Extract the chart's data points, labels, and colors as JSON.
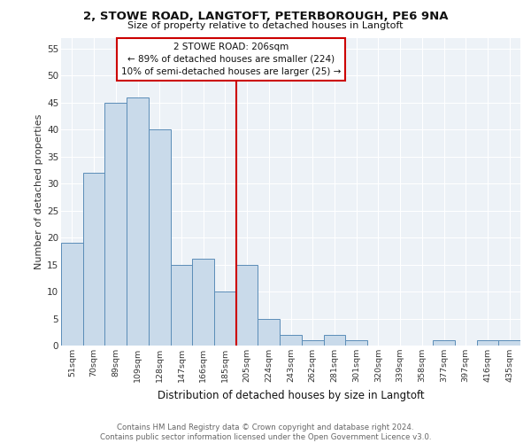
{
  "title1": "2, STOWE ROAD, LANGTOFT, PETERBOROUGH, PE6 9NA",
  "title2": "Size of property relative to detached houses in Langtoft",
  "xlabel": "Distribution of detached houses by size in Langtoft",
  "ylabel": "Number of detached properties",
  "categories": [
    "51sqm",
    "70sqm",
    "89sqm",
    "109sqm",
    "128sqm",
    "147sqm",
    "166sqm",
    "185sqm",
    "205sqm",
    "224sqm",
    "243sqm",
    "262sqm",
    "281sqm",
    "301sqm",
    "320sqm",
    "339sqm",
    "358sqm",
    "377sqm",
    "397sqm",
    "416sqm",
    "435sqm"
  ],
  "values": [
    19,
    32,
    45,
    46,
    40,
    15,
    16,
    10,
    15,
    5,
    2,
    1,
    2,
    1,
    0,
    0,
    0,
    1,
    0,
    1,
    1
  ],
  "bar_color": "#c9daea",
  "bar_edge_color": "#5b8db8",
  "vline_x_index": 8,
  "vline_color": "#cc0000",
  "annotation_line1": "2 STOWE ROAD: 206sqm",
  "annotation_line2": "← 89% of detached houses are smaller (224)",
  "annotation_line3": "10% of semi-detached houses are larger (25) →",
  "annotation_box_color": "#cc0000",
  "background_color": "#edf2f7",
  "grid_color": "#ffffff",
  "footer_text": "Contains HM Land Registry data © Crown copyright and database right 2024.\nContains public sector information licensed under the Open Government Licence v3.0.",
  "ylim": [
    0,
    57
  ],
  "yticks": [
    0,
    5,
    10,
    15,
    20,
    25,
    30,
    35,
    40,
    45,
    50,
    55
  ]
}
